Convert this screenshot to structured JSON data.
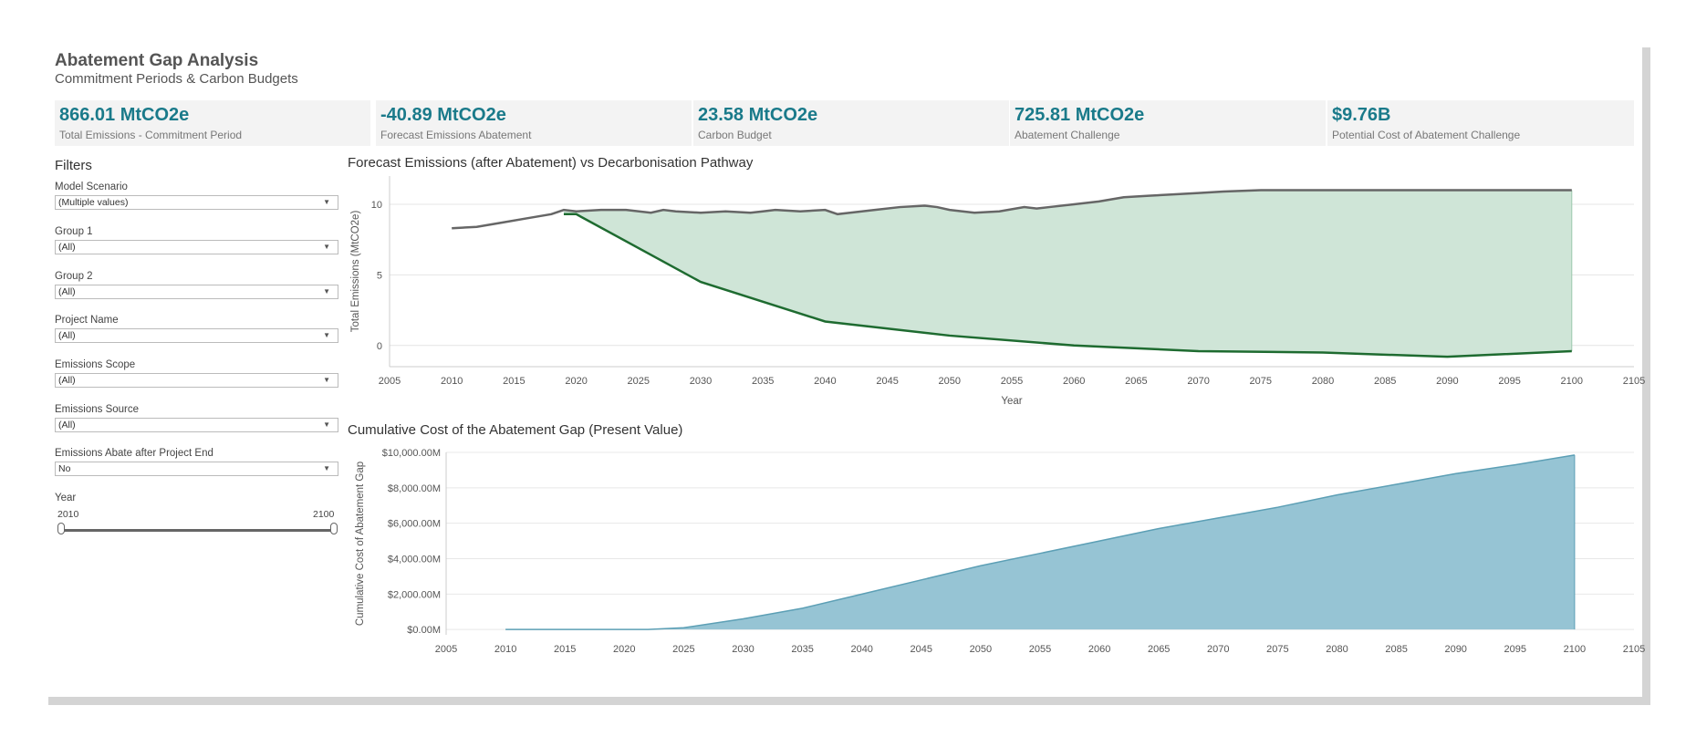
{
  "header": {
    "title": "Abatement Gap Analysis",
    "subtitle": "Commitment Periods & Carbon Budgets"
  },
  "kpis": [
    {
      "value": "866.01 MtCO2e",
      "label": "Total Emissions - Commitment Period"
    },
    {
      "value": "-40.89 MtCO2e",
      "label": "Forecast Emissions Abatement"
    },
    {
      "value": "23.58 MtCO2e",
      "label": "Carbon Budget"
    },
    {
      "value": "725.81 MtCO2e",
      "label": "Abatement Challenge"
    },
    {
      "value": "$9.76B",
      "label": "Potential Cost of Abatement Challenge"
    }
  ],
  "filters": {
    "title": "Filters",
    "items": [
      {
        "label": "Model Scenario",
        "value": "(Multiple values)"
      },
      {
        "label": "Group 1",
        "value": "(All)"
      },
      {
        "label": "Group 2",
        "value": "(All)"
      },
      {
        "label": "Project Name",
        "value": "(All)"
      },
      {
        "label": "Emissions Scope",
        "value": "(All)"
      },
      {
        "label": "Emissions Source",
        "value": "(All)"
      },
      {
        "label": "Emissions Abate after Project End",
        "value": "No"
      }
    ],
    "year": {
      "label": "Year",
      "min": "2010",
      "max": "2100",
      "selected_min": 2010,
      "selected_max": 2100
    }
  },
  "colors": {
    "kpi_value": "#1a7a8a",
    "forecast_line": "#666666",
    "pathway_line": "#1e6b30",
    "gap_fill": "#cfe5d7",
    "cost_fill": "#96c4d4",
    "cost_line": "#5c9fb5"
  },
  "chart_data": [
    {
      "type": "line",
      "title": "Forecast Emissions (after Abatement) vs Decarbonisation Pathway",
      "xlabel": "Year",
      "ylabel": "Total Emissions (MtCO2e)",
      "xlim": [
        2005,
        2105
      ],
      "ylim": [
        -1.5,
        12
      ],
      "x_ticks": [
        "2005",
        "2010",
        "2015",
        "2020",
        "2025",
        "2030",
        "2035",
        "2040",
        "2045",
        "2050",
        "2055",
        "2060",
        "2065",
        "2070",
        "2075",
        "2080",
        "2085",
        "2090",
        "2095",
        "2100",
        "2105"
      ],
      "y_ticks": [
        "0",
        "5",
        "10"
      ],
      "grid": true,
      "series": [
        {
          "key": "forecast",
          "x": [
            2010,
            2012,
            2014,
            2016,
            2018,
            2019,
            2020,
            2022,
            2024,
            2026,
            2027,
            2028,
            2030,
            2032,
            2034,
            2035,
            2036,
            2038,
            2040,
            2041,
            2042,
            2044,
            2046,
            2048,
            2049,
            2050,
            2052,
            2054,
            2056,
            2057,
            2058,
            2060,
            2062,
            2064,
            2066,
            2068,
            2070,
            2072,
            2075,
            2076,
            2080,
            2085,
            2090,
            2095,
            2100
          ],
          "y": [
            8.3,
            8.4,
            8.7,
            9.0,
            9.3,
            9.6,
            9.5,
            9.6,
            9.6,
            9.4,
            9.6,
            9.5,
            9.4,
            9.5,
            9.4,
            9.5,
            9.6,
            9.5,
            9.6,
            9.3,
            9.4,
            9.6,
            9.8,
            9.9,
            9.8,
            9.6,
            9.4,
            9.5,
            9.8,
            9.7,
            9.8,
            10.0,
            10.2,
            10.5,
            10.6,
            10.7,
            10.8,
            10.9,
            11.0,
            11.0,
            11.0,
            11.0,
            11.0,
            11.0,
            11.0
          ]
        },
        {
          "key": "pathway",
          "x": [
            2019,
            2020,
            2030,
            2040,
            2050,
            2060,
            2070,
            2080,
            2090,
            2100
          ],
          "y": [
            9.3,
            9.3,
            4.5,
            1.7,
            0.7,
            0.0,
            -0.4,
            -0.5,
            -0.8,
            -0.4
          ]
        }
      ]
    },
    {
      "type": "area",
      "title": "Cumulative Cost of the Abatement Gap (Present Value)",
      "xlabel": "",
      "ylabel": "Cumulative Cost of Abatement Gap",
      "xlim": [
        2005,
        2105
      ],
      "ylim": [
        -300,
        10000
      ],
      "x_ticks": [
        "2005",
        "2010",
        "2015",
        "2020",
        "2025",
        "2030",
        "2035",
        "2040",
        "2045",
        "2050",
        "2055",
        "2060",
        "2065",
        "2070",
        "2075",
        "2080",
        "2085",
        "2090",
        "2095",
        "2100",
        "2105"
      ],
      "y_ticks": [
        "$0.00M",
        "$2,000.00M",
        "$4,000.00M",
        "$6,000.00M",
        "$8,000.00M",
        "$10,000.00M"
      ],
      "y_tick_values": [
        0,
        2000,
        4000,
        6000,
        8000,
        10000
      ],
      "grid": true,
      "series": [
        {
          "key": "cost",
          "x": [
            2010,
            2015,
            2020,
            2022,
            2025,
            2030,
            2035,
            2040,
            2045,
            2050,
            2055,
            2060,
            2065,
            2070,
            2075,
            2080,
            2085,
            2090,
            2095,
            2100
          ],
          "y": [
            0,
            0,
            0,
            0,
            100,
            600,
            1200,
            2000,
            2800,
            3600,
            4300,
            5000,
            5700,
            6300,
            6900,
            7600,
            8200,
            8800,
            9300,
            9850
          ]
        }
      ]
    }
  ]
}
